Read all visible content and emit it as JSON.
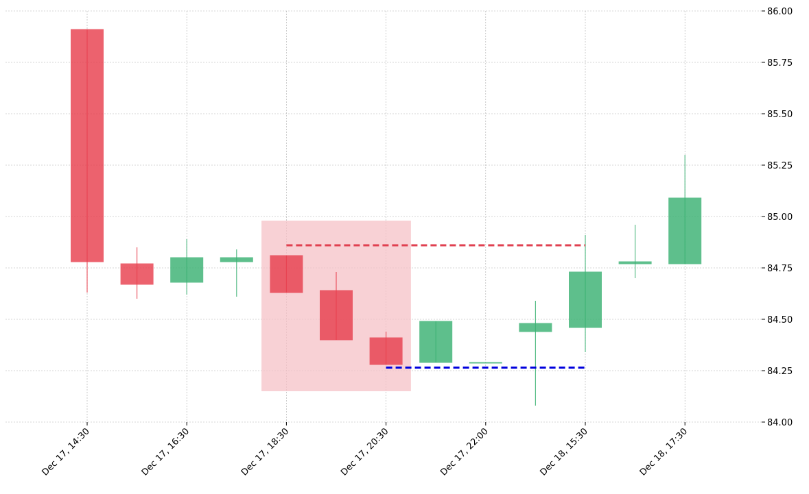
{
  "chart_data": {
    "type": "candlestick",
    "title": "",
    "xlabel": "",
    "ylabel": "",
    "ylim": [
      84.0,
      86.0
    ],
    "yticks": [
      "84.00",
      "84.25",
      "84.50",
      "84.75",
      "85.00",
      "85.25",
      "85.50",
      "85.75",
      "86.00"
    ],
    "ytick_values": [
      84.0,
      84.25,
      84.5,
      84.75,
      85.0,
      85.25,
      85.5,
      85.75,
      86.0
    ],
    "xtick_labels": [
      {
        "index": 0,
        "label": "Dec 17, 14:30"
      },
      {
        "index": 2,
        "label": "Dec 17, 16:30"
      },
      {
        "index": 4,
        "label": "Dec 17, 18:30"
      },
      {
        "index": 6,
        "label": "Dec 17, 20:30"
      },
      {
        "index": 8,
        "label": "Dec 17, 22:00"
      },
      {
        "index": 10,
        "label": "Dec 18, 15:30"
      },
      {
        "index": 12,
        "label": "Dec 18, 17:30"
      }
    ],
    "candles": [
      {
        "open": 85.91,
        "high": 85.91,
        "low": 84.63,
        "close": 84.78
      },
      {
        "open": 84.77,
        "high": 84.85,
        "low": 84.6,
        "close": 84.67
      },
      {
        "open": 84.68,
        "high": 84.89,
        "low": 84.62,
        "close": 84.8
      },
      {
        "open": 84.78,
        "high": 84.84,
        "low": 84.61,
        "close": 84.8
      },
      {
        "open": 84.81,
        "high": 84.81,
        "low": 84.63,
        "close": 84.63
      },
      {
        "open": 84.64,
        "high": 84.73,
        "low": 84.4,
        "close": 84.4
      },
      {
        "open": 84.41,
        "high": 84.44,
        "low": 84.28,
        "close": 84.28
      },
      {
        "open": 84.29,
        "high": 84.49,
        "low": 84.29,
        "close": 84.49
      },
      {
        "open": 84.29,
        "high": 84.29,
        "low": 84.29,
        "close": 84.29
      },
      {
        "open": 84.44,
        "high": 84.59,
        "low": 84.08,
        "close": 84.48
      },
      {
        "open": 84.46,
        "high": 84.91,
        "low": 84.34,
        "close": 84.73
      },
      {
        "open": 84.77,
        "high": 84.96,
        "low": 84.7,
        "close": 84.78
      },
      {
        "open": 84.77,
        "high": 85.3,
        "low": 84.77,
        "close": 85.09
      }
    ],
    "highlight_zone": {
      "x_start": 3.5,
      "x_end": 6.5,
      "y_low": 84.15,
      "y_high": 84.98
    },
    "resistance_line": {
      "value": 84.86,
      "x_start": 4,
      "x_end": 10
    },
    "support_line": {
      "value": 84.265,
      "x_start": 6,
      "x_end": 10
    },
    "colors": {
      "up": "#3bb273",
      "down": "#e8404f",
      "zone": "#f6c1c7",
      "resistance": "#e04050",
      "support": "#0000dd",
      "grid": "#aaaaaa"
    }
  }
}
